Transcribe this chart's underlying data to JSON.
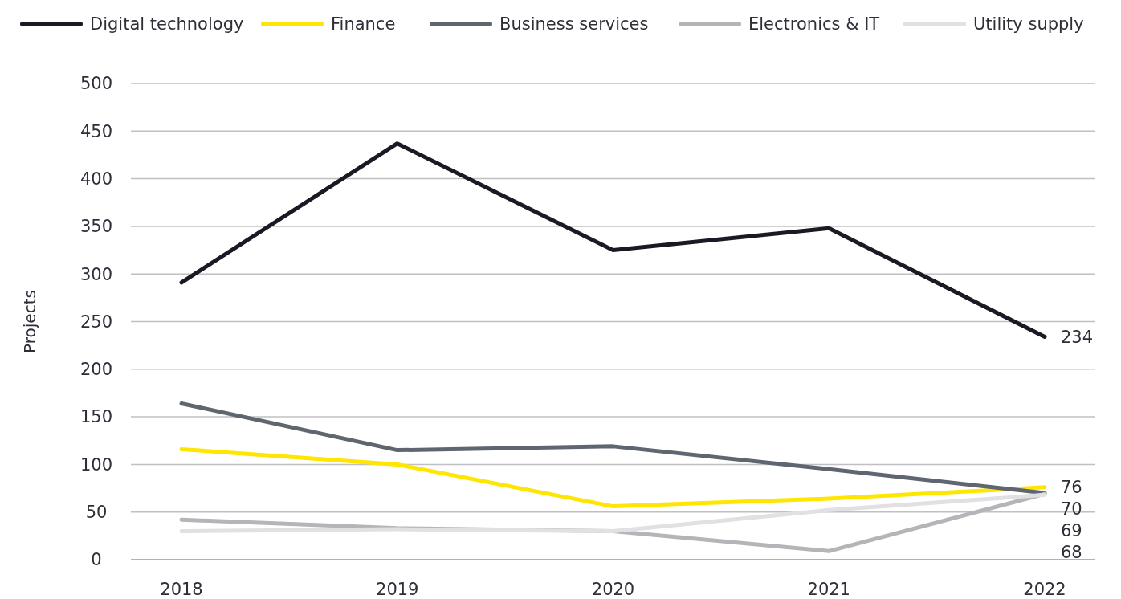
{
  "chart_data": {
    "type": "line",
    "ylabel": "Projects",
    "categories": [
      "2018",
      "2019",
      "2020",
      "2021",
      "2022"
    ],
    "ylim": [
      0,
      500
    ],
    "yticks": [
      0,
      50,
      100,
      150,
      200,
      250,
      300,
      350,
      400,
      450,
      500
    ],
    "grid": "y",
    "legend": "top",
    "marker": "none",
    "line_style": "solid",
    "series": [
      {
        "name": "Digital technology",
        "color": "#1a1a24",
        "values": [
          291,
          437,
          325,
          348,
          234
        ],
        "value_labels": [
          null,
          null,
          null,
          null,
          "234"
        ]
      },
      {
        "name": "Finance",
        "color": "#ffe600",
        "values": [
          116,
          100,
          56,
          64,
          76
        ],
        "value_labels": [
          null,
          null,
          null,
          null,
          "76"
        ]
      },
      {
        "name": "Business services",
        "color": "#5f6670",
        "values": [
          164,
          115,
          119,
          95,
          70
        ],
        "value_labels": [
          null,
          null,
          null,
          null,
          "70"
        ]
      },
      {
        "name": "Electronics & IT",
        "color": "#b3b5b8",
        "values": [
          42,
          33,
          30,
          9,
          69
        ],
        "value_labels": [
          null,
          null,
          null,
          null,
          "69"
        ]
      },
      {
        "name": "Utility supply",
        "color": "#e1e1e3",
        "values": [
          30,
          32,
          30,
          52,
          68
        ],
        "value_labels": [
          null,
          null,
          null,
          null,
          "68"
        ]
      }
    ]
  }
}
